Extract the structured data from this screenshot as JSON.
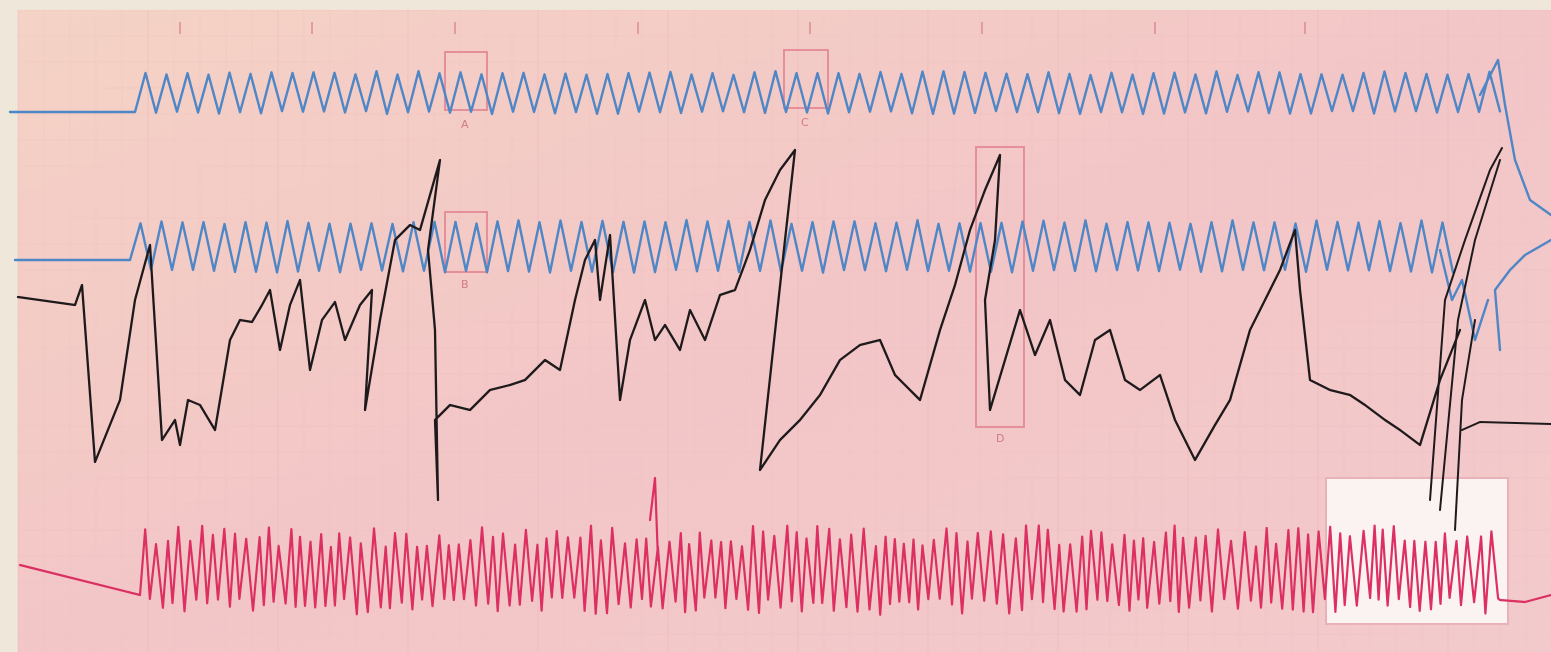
{
  "recording": {
    "paper_color": "#f2c6c6",
    "paper_edge_color": "#ede6d6",
    "grid_color": "#e9a8b0",
    "box_color": "#e58f9b",
    "traces": [
      {
        "id": "blue-upper",
        "color": "#4f86c6"
      },
      {
        "id": "blue-middle",
        "color": "#4f86c6"
      },
      {
        "id": "black",
        "color": "#1e1a1c"
      },
      {
        "id": "red",
        "color": "#dc2f62"
      }
    ],
    "markers": [
      "A",
      "B",
      "C",
      "D"
    ]
  }
}
